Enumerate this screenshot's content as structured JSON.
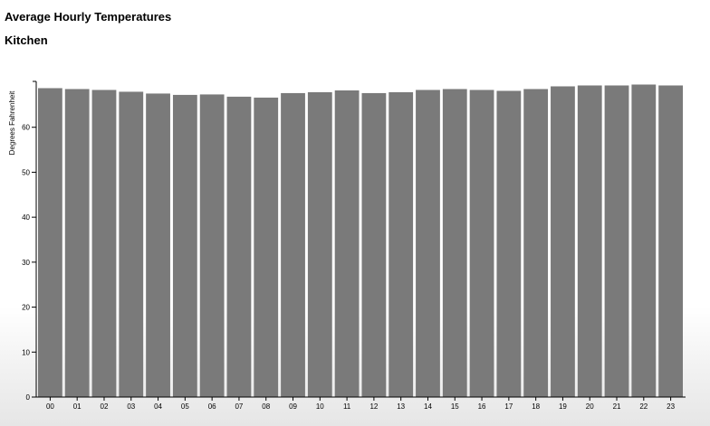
{
  "header": {
    "title": "Average Hourly Temperatures",
    "subtitle": "Kitchen"
  },
  "chart_data": {
    "type": "bar",
    "title": "Average Hourly Temperatures",
    "subtitle": "Kitchen",
    "xlabel": "",
    "ylabel": "Degrees Fahrenheit",
    "categories": [
      "00",
      "01",
      "02",
      "03",
      "04",
      "05",
      "06",
      "07",
      "08",
      "09",
      "10",
      "11",
      "12",
      "13",
      "14",
      "15",
      "16",
      "17",
      "18",
      "19",
      "20",
      "21",
      "22",
      "23"
    ],
    "values": [
      68.7,
      68.5,
      68.3,
      67.9,
      67.5,
      67.2,
      67.3,
      66.8,
      66.6,
      67.6,
      67.8,
      68.2,
      67.6,
      67.8,
      68.3,
      68.5,
      68.3,
      68.1,
      68.5,
      69.1,
      69.3,
      69.3,
      69.5,
      69.3
    ],
    "yticks": [
      0,
      10,
      20,
      30,
      40,
      50,
      60
    ],
    "ylim": [
      0,
      70
    ],
    "grid": false,
    "bar_color": "#7a7a7a"
  }
}
